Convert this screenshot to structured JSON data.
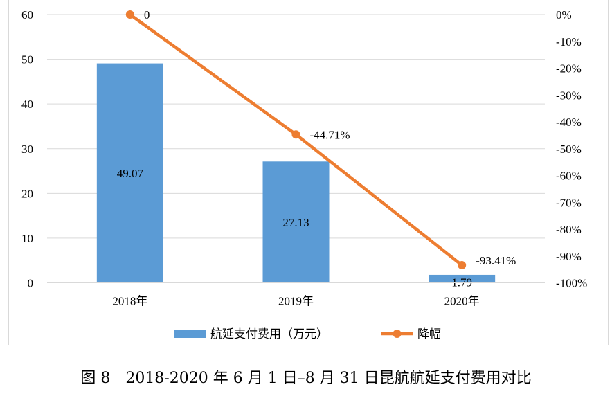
{
  "chart_data": {
    "type": "bar",
    "categories": [
      "2018年",
      "2019年",
      "2020年"
    ],
    "series": [
      {
        "name": "航延支付费用（万元）",
        "type": "bar",
        "axis": "left",
        "color": "#5B9BD5",
        "values": [
          49.07,
          27.13,
          1.79
        ],
        "labels": [
          "49.07",
          "27.13",
          "1.79"
        ]
      },
      {
        "name": "降幅",
        "type": "line",
        "axis": "right",
        "color": "#ED7D31",
        "values": [
          0,
          -44.71,
          -93.41
        ],
        "labels": [
          "0",
          "-44.71%",
          "-93.41%"
        ]
      }
    ],
    "y_left": {
      "ylim": [
        0,
        60
      ],
      "ticks": [
        "0",
        "10",
        "20",
        "30",
        "40",
        "50",
        "60"
      ]
    },
    "y_right": {
      "ylim": [
        -100,
        0
      ],
      "ticks": [
        "0%",
        "-10%",
        "-20%",
        "-30%",
        "-40%",
        "-50%",
        "-60%",
        "-70%",
        "-80%",
        "-90%",
        "-100%"
      ]
    },
    "grid": true,
    "legend_position": "bottom"
  },
  "caption": "图 8　2018-2020 年 6 月 1 日–8 月 31 日昆航航延支付费用对比"
}
